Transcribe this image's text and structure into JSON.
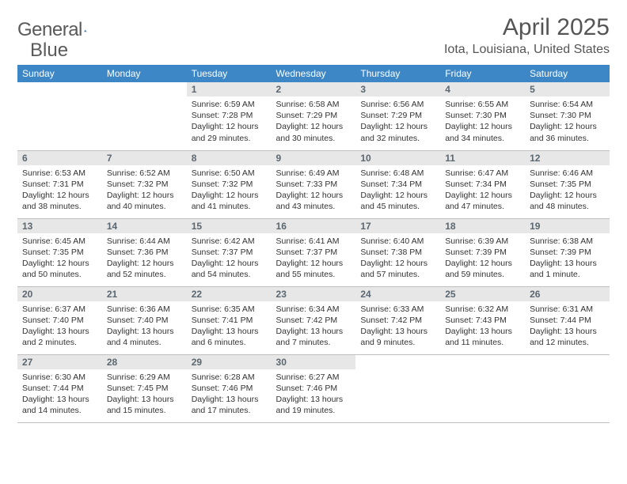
{
  "brand": {
    "name_a": "General",
    "name_b": "Blue",
    "accent": "#2f6fa8"
  },
  "title": "April 2025",
  "location": "Iota, Louisiana, United States",
  "header_bg": "#3d87c7",
  "weekdays": [
    "Sunday",
    "Monday",
    "Tuesday",
    "Wednesday",
    "Thursday",
    "Friday",
    "Saturday"
  ],
  "weeks": [
    [
      null,
      null,
      {
        "n": "1",
        "sr": "Sunrise: 6:59 AM",
        "ss": "Sunset: 7:28 PM",
        "d1": "Daylight: 12 hours",
        "d2": "and 29 minutes."
      },
      {
        "n": "2",
        "sr": "Sunrise: 6:58 AM",
        "ss": "Sunset: 7:29 PM",
        "d1": "Daylight: 12 hours",
        "d2": "and 30 minutes."
      },
      {
        "n": "3",
        "sr": "Sunrise: 6:56 AM",
        "ss": "Sunset: 7:29 PM",
        "d1": "Daylight: 12 hours",
        "d2": "and 32 minutes."
      },
      {
        "n": "4",
        "sr": "Sunrise: 6:55 AM",
        "ss": "Sunset: 7:30 PM",
        "d1": "Daylight: 12 hours",
        "d2": "and 34 minutes."
      },
      {
        "n": "5",
        "sr": "Sunrise: 6:54 AM",
        "ss": "Sunset: 7:30 PM",
        "d1": "Daylight: 12 hours",
        "d2": "and 36 minutes."
      }
    ],
    [
      {
        "n": "6",
        "sr": "Sunrise: 6:53 AM",
        "ss": "Sunset: 7:31 PM",
        "d1": "Daylight: 12 hours",
        "d2": "and 38 minutes."
      },
      {
        "n": "7",
        "sr": "Sunrise: 6:52 AM",
        "ss": "Sunset: 7:32 PM",
        "d1": "Daylight: 12 hours",
        "d2": "and 40 minutes."
      },
      {
        "n": "8",
        "sr": "Sunrise: 6:50 AM",
        "ss": "Sunset: 7:32 PM",
        "d1": "Daylight: 12 hours",
        "d2": "and 41 minutes."
      },
      {
        "n": "9",
        "sr": "Sunrise: 6:49 AM",
        "ss": "Sunset: 7:33 PM",
        "d1": "Daylight: 12 hours",
        "d2": "and 43 minutes."
      },
      {
        "n": "10",
        "sr": "Sunrise: 6:48 AM",
        "ss": "Sunset: 7:34 PM",
        "d1": "Daylight: 12 hours",
        "d2": "and 45 minutes."
      },
      {
        "n": "11",
        "sr": "Sunrise: 6:47 AM",
        "ss": "Sunset: 7:34 PM",
        "d1": "Daylight: 12 hours",
        "d2": "and 47 minutes."
      },
      {
        "n": "12",
        "sr": "Sunrise: 6:46 AM",
        "ss": "Sunset: 7:35 PM",
        "d1": "Daylight: 12 hours",
        "d2": "and 48 minutes."
      }
    ],
    [
      {
        "n": "13",
        "sr": "Sunrise: 6:45 AM",
        "ss": "Sunset: 7:35 PM",
        "d1": "Daylight: 12 hours",
        "d2": "and 50 minutes."
      },
      {
        "n": "14",
        "sr": "Sunrise: 6:44 AM",
        "ss": "Sunset: 7:36 PM",
        "d1": "Daylight: 12 hours",
        "d2": "and 52 minutes."
      },
      {
        "n": "15",
        "sr": "Sunrise: 6:42 AM",
        "ss": "Sunset: 7:37 PM",
        "d1": "Daylight: 12 hours",
        "d2": "and 54 minutes."
      },
      {
        "n": "16",
        "sr": "Sunrise: 6:41 AM",
        "ss": "Sunset: 7:37 PM",
        "d1": "Daylight: 12 hours",
        "d2": "and 55 minutes."
      },
      {
        "n": "17",
        "sr": "Sunrise: 6:40 AM",
        "ss": "Sunset: 7:38 PM",
        "d1": "Daylight: 12 hours",
        "d2": "and 57 minutes."
      },
      {
        "n": "18",
        "sr": "Sunrise: 6:39 AM",
        "ss": "Sunset: 7:39 PM",
        "d1": "Daylight: 12 hours",
        "d2": "and 59 minutes."
      },
      {
        "n": "19",
        "sr": "Sunrise: 6:38 AM",
        "ss": "Sunset: 7:39 PM",
        "d1": "Daylight: 13 hours",
        "d2": "and 1 minute."
      }
    ],
    [
      {
        "n": "20",
        "sr": "Sunrise: 6:37 AM",
        "ss": "Sunset: 7:40 PM",
        "d1": "Daylight: 13 hours",
        "d2": "and 2 minutes."
      },
      {
        "n": "21",
        "sr": "Sunrise: 6:36 AM",
        "ss": "Sunset: 7:40 PM",
        "d1": "Daylight: 13 hours",
        "d2": "and 4 minutes."
      },
      {
        "n": "22",
        "sr": "Sunrise: 6:35 AM",
        "ss": "Sunset: 7:41 PM",
        "d1": "Daylight: 13 hours",
        "d2": "and 6 minutes."
      },
      {
        "n": "23",
        "sr": "Sunrise: 6:34 AM",
        "ss": "Sunset: 7:42 PM",
        "d1": "Daylight: 13 hours",
        "d2": "and 7 minutes."
      },
      {
        "n": "24",
        "sr": "Sunrise: 6:33 AM",
        "ss": "Sunset: 7:42 PM",
        "d1": "Daylight: 13 hours",
        "d2": "and 9 minutes."
      },
      {
        "n": "25",
        "sr": "Sunrise: 6:32 AM",
        "ss": "Sunset: 7:43 PM",
        "d1": "Daylight: 13 hours",
        "d2": "and 11 minutes."
      },
      {
        "n": "26",
        "sr": "Sunrise: 6:31 AM",
        "ss": "Sunset: 7:44 PM",
        "d1": "Daylight: 13 hours",
        "d2": "and 12 minutes."
      }
    ],
    [
      {
        "n": "27",
        "sr": "Sunrise: 6:30 AM",
        "ss": "Sunset: 7:44 PM",
        "d1": "Daylight: 13 hours",
        "d2": "and 14 minutes."
      },
      {
        "n": "28",
        "sr": "Sunrise: 6:29 AM",
        "ss": "Sunset: 7:45 PM",
        "d1": "Daylight: 13 hours",
        "d2": "and 15 minutes."
      },
      {
        "n": "29",
        "sr": "Sunrise: 6:28 AM",
        "ss": "Sunset: 7:46 PM",
        "d1": "Daylight: 13 hours",
        "d2": "and 17 minutes."
      },
      {
        "n": "30",
        "sr": "Sunrise: 6:27 AM",
        "ss": "Sunset: 7:46 PM",
        "d1": "Daylight: 13 hours",
        "d2": "and 19 minutes."
      },
      null,
      null,
      null
    ]
  ]
}
